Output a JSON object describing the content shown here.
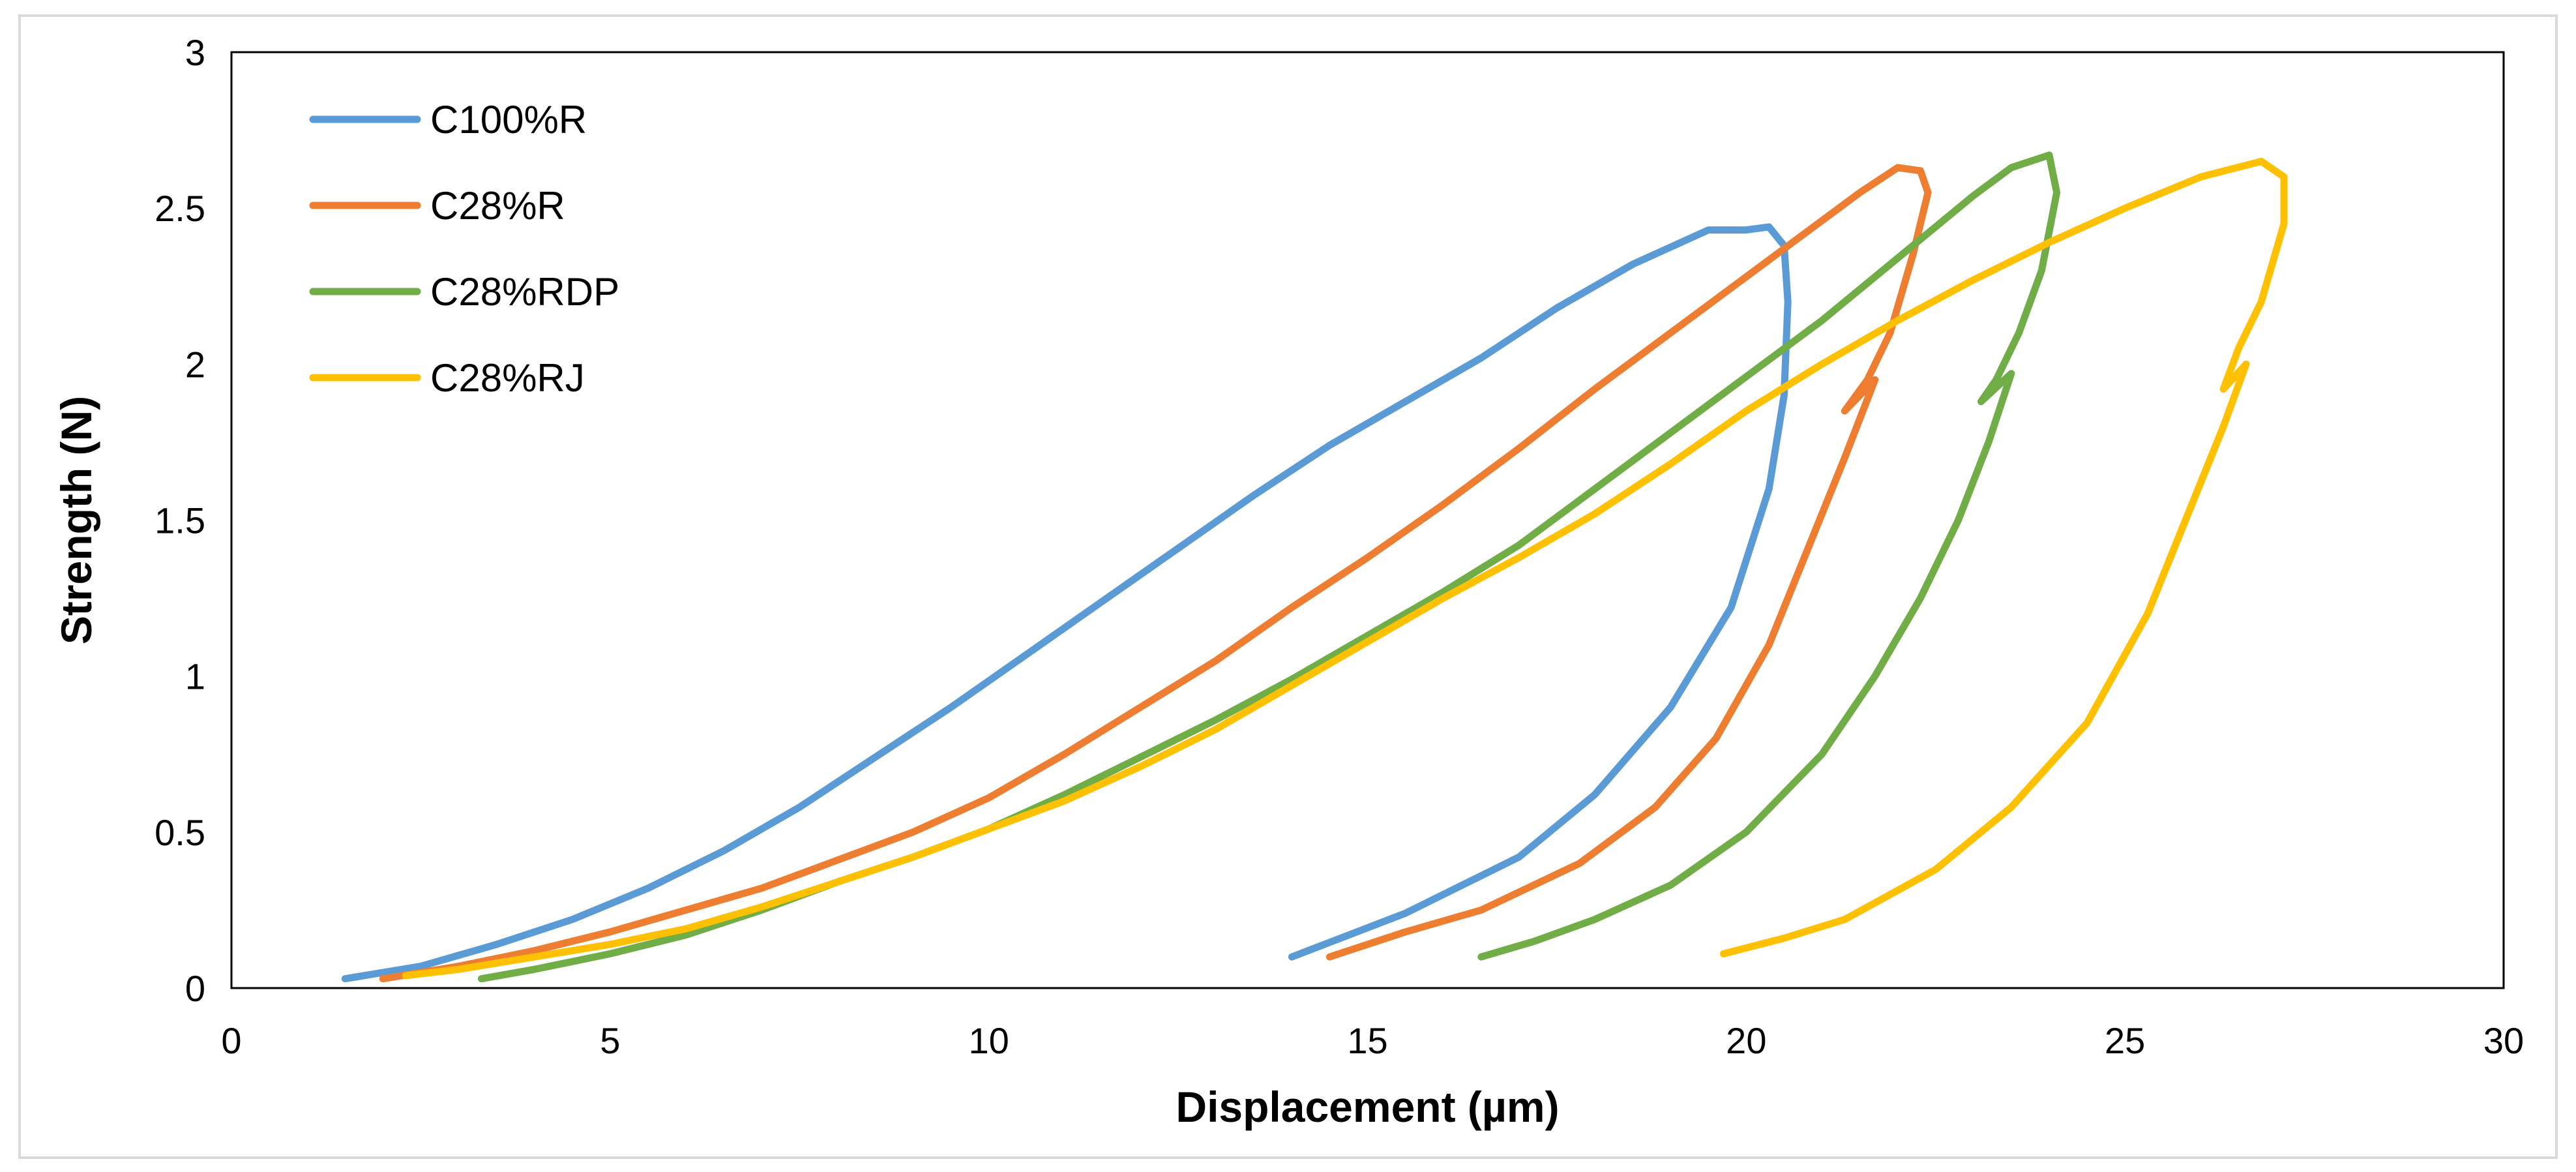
{
  "chart_data": {
    "type": "line",
    "xlabel": "Displacement (µm)",
    "ylabel": "Strength (N)",
    "xlim": [
      0,
      30
    ],
    "ylim": [
      0,
      3
    ],
    "x_ticks": [
      "0",
      "5",
      "10",
      "15",
      "20",
      "25",
      "30"
    ],
    "y_ticks": [
      "0",
      "0.5",
      "1",
      "1.5",
      "2",
      "2.5",
      "3"
    ],
    "grid": false,
    "legend_position": "top-left",
    "series": [
      {
        "name": "C100%R",
        "color": "#5B9BD5",
        "points": [
          [
            1.5,
            0.03
          ],
          [
            2.5,
            0.07
          ],
          [
            3.5,
            0.14
          ],
          [
            4.5,
            0.22
          ],
          [
            5.5,
            0.32
          ],
          [
            6.5,
            0.44
          ],
          [
            7.5,
            0.58
          ],
          [
            8.5,
            0.74
          ],
          [
            9.5,
            0.9
          ],
          [
            10.5,
            1.07
          ],
          [
            11.5,
            1.24
          ],
          [
            12.5,
            1.41
          ],
          [
            13.5,
            1.58
          ],
          [
            14.5,
            1.74
          ],
          [
            15.5,
            1.88
          ],
          [
            16.5,
            2.02
          ],
          [
            17.5,
            2.18
          ],
          [
            18.5,
            2.32
          ],
          [
            19.5,
            2.43
          ],
          [
            20.0,
            2.43
          ],
          [
            20.3,
            2.44
          ],
          [
            20.5,
            2.38
          ],
          [
            20.55,
            2.2
          ],
          [
            20.5,
            1.9
          ],
          [
            20.3,
            1.6
          ],
          [
            19.8,
            1.22
          ],
          [
            19.0,
            0.9
          ],
          [
            18.0,
            0.62
          ],
          [
            17.0,
            0.42
          ],
          [
            15.5,
            0.24
          ],
          [
            14.0,
            0.1
          ]
        ]
      },
      {
        "name": "C28%R",
        "color": "#ED7D31",
        "points": [
          [
            2.0,
            0.03
          ],
          [
            3.0,
            0.07
          ],
          [
            4.0,
            0.12
          ],
          [
            5.0,
            0.18
          ],
          [
            6.0,
            0.25
          ],
          [
            7.0,
            0.32
          ],
          [
            8.0,
            0.41
          ],
          [
            9.0,
            0.5
          ],
          [
            10.0,
            0.61
          ],
          [
            11.0,
            0.75
          ],
          [
            12.0,
            0.9
          ],
          [
            13.0,
            1.05
          ],
          [
            14.0,
            1.22
          ],
          [
            15.0,
            1.38
          ],
          [
            16.0,
            1.55
          ],
          [
            17.0,
            1.73
          ],
          [
            18.0,
            1.92
          ],
          [
            19.0,
            2.1
          ],
          [
            20.0,
            2.28
          ],
          [
            21.0,
            2.46
          ],
          [
            21.5,
            2.55
          ],
          [
            22.0,
            2.63
          ],
          [
            22.3,
            2.62
          ],
          [
            22.4,
            2.55
          ],
          [
            22.2,
            2.35
          ],
          [
            21.9,
            2.1
          ],
          [
            21.6,
            1.95
          ],
          [
            21.3,
            1.85
          ],
          [
            21.7,
            1.95
          ],
          [
            21.3,
            1.7
          ],
          [
            20.8,
            1.4
          ],
          [
            20.3,
            1.1
          ],
          [
            19.6,
            0.8
          ],
          [
            18.8,
            0.58
          ],
          [
            17.8,
            0.4
          ],
          [
            16.5,
            0.25
          ],
          [
            15.5,
            0.18
          ],
          [
            14.5,
            0.1
          ]
        ]
      },
      {
        "name": "C28%RDP",
        "color": "#70AD47",
        "points": [
          [
            3.3,
            0.03
          ],
          [
            4.0,
            0.06
          ],
          [
            5.0,
            0.11
          ],
          [
            6.0,
            0.17
          ],
          [
            7.0,
            0.25
          ],
          [
            8.0,
            0.34
          ],
          [
            9.0,
            0.42
          ],
          [
            10.0,
            0.51
          ],
          [
            11.0,
            0.62
          ],
          [
            12.0,
            0.74
          ],
          [
            13.0,
            0.86
          ],
          [
            14.0,
            0.99
          ],
          [
            15.0,
            1.13
          ],
          [
            16.0,
            1.27
          ],
          [
            17.0,
            1.42
          ],
          [
            18.0,
            1.6
          ],
          [
            19.0,
            1.78
          ],
          [
            20.0,
            1.96
          ],
          [
            21.0,
            2.14
          ],
          [
            22.0,
            2.34
          ],
          [
            23.0,
            2.54
          ],
          [
            23.5,
            2.63
          ],
          [
            24.0,
            2.67
          ],
          [
            24.1,
            2.55
          ],
          [
            23.9,
            2.3
          ],
          [
            23.6,
            2.1
          ],
          [
            23.3,
            1.95
          ],
          [
            23.1,
            1.88
          ],
          [
            23.5,
            1.97
          ],
          [
            23.2,
            1.75
          ],
          [
            22.8,
            1.5
          ],
          [
            22.3,
            1.25
          ],
          [
            21.7,
            1.0
          ],
          [
            21.0,
            0.75
          ],
          [
            20.0,
            0.5
          ],
          [
            19.0,
            0.33
          ],
          [
            18.0,
            0.22
          ],
          [
            17.2,
            0.15
          ],
          [
            16.5,
            0.1
          ]
        ]
      },
      {
        "name": "C28%RJ",
        "color": "#FFC000",
        "points": [
          [
            2.3,
            0.04
          ],
          [
            3.0,
            0.06
          ],
          [
            4.0,
            0.1
          ],
          [
            5.0,
            0.14
          ],
          [
            6.0,
            0.19
          ],
          [
            7.0,
            0.26
          ],
          [
            8.0,
            0.34
          ],
          [
            9.0,
            0.42
          ],
          [
            10.0,
            0.51
          ],
          [
            11.0,
            0.6
          ],
          [
            12.0,
            0.71
          ],
          [
            13.0,
            0.83
          ],
          [
            14.0,
            0.97
          ],
          [
            15.0,
            1.11
          ],
          [
            16.0,
            1.25
          ],
          [
            17.0,
            1.38
          ],
          [
            18.0,
            1.52
          ],
          [
            19.0,
            1.68
          ],
          [
            20.0,
            1.85
          ],
          [
            21.0,
            2.0
          ],
          [
            22.0,
            2.14
          ],
          [
            23.0,
            2.27
          ],
          [
            24.0,
            2.39
          ],
          [
            25.0,
            2.5
          ],
          [
            26.0,
            2.6
          ],
          [
            26.8,
            2.65
          ],
          [
            27.1,
            2.6
          ],
          [
            27.1,
            2.45
          ],
          [
            26.8,
            2.2
          ],
          [
            26.5,
            2.05
          ],
          [
            26.3,
            1.92
          ],
          [
            26.6,
            2.0
          ],
          [
            26.3,
            1.8
          ],
          [
            25.8,
            1.5
          ],
          [
            25.3,
            1.2
          ],
          [
            24.5,
            0.85
          ],
          [
            23.5,
            0.58
          ],
          [
            22.5,
            0.38
          ],
          [
            21.3,
            0.22
          ],
          [
            20.5,
            0.16
          ],
          [
            19.7,
            0.11
          ]
        ]
      }
    ]
  }
}
